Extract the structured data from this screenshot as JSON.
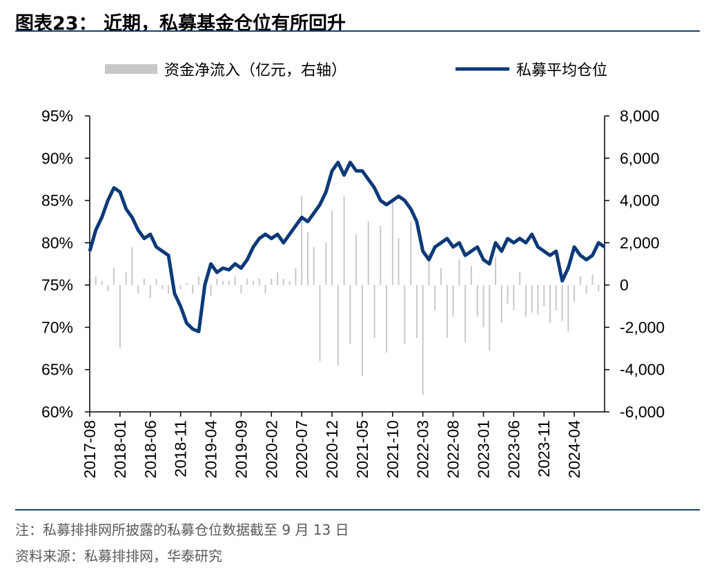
{
  "title": "图表23： 近期，私募基金仓位有所回升",
  "notes": {
    "note": "注：私募排排网所披露的私募仓位数据截至 9 月 13 日",
    "source": "资料来源：私募排排网，华泰研究"
  },
  "colors": {
    "line": "#0c3a78",
    "bars": "#c8c8c8",
    "rule": "#1f3f73"
  },
  "chart_data": {
    "type": "line",
    "legend": [
      "资金净流入（亿元，右轴）",
      "私募平均仓位"
    ],
    "legend_position": "top",
    "grid": false,
    "x_ticks": [
      "2017-08",
      "2018-01",
      "2018-06",
      "2018-11",
      "2019-04",
      "2019-09",
      "2020-02",
      "2020-07",
      "2020-12",
      "2021-05",
      "2021-10",
      "2022-03",
      "2022-08",
      "2023-01",
      "2023-06",
      "2023-11",
      "2024-04"
    ],
    "x_range": [
      "2017-08",
      "2024-09"
    ],
    "y_left": {
      "ticks": [
        "60%",
        "65%",
        "70%",
        "75%",
        "80%",
        "85%",
        "90%",
        "95%"
      ],
      "range": [
        60,
        95
      ],
      "unit": "%"
    },
    "y_right": {
      "ticks": [
        "8,000",
        "6,000",
        "4,000",
        "2,000",
        "0",
        "-2,000",
        "-4,000",
        "-6,000"
      ],
      "range": [
        -6000,
        8000
      ]
    },
    "series": [
      {
        "name": "私募平均仓位",
        "axis": "left",
        "points": [
          [
            "2017-08",
            79.0
          ],
          [
            "2017-09",
            81.5
          ],
          [
            "2017-10",
            83.0
          ],
          [
            "2017-11",
            85.0
          ],
          [
            "2017-12",
            86.5
          ],
          [
            "2018-01",
            86.0
          ],
          [
            "2018-02",
            84.0
          ],
          [
            "2018-03",
            83.0
          ],
          [
            "2018-04",
            81.5
          ],
          [
            "2018-05",
            80.5
          ],
          [
            "2018-06",
            81.0
          ],
          [
            "2018-07",
            79.5
          ],
          [
            "2018-08",
            79.0
          ],
          [
            "2018-09",
            78.5
          ],
          [
            "2018-10",
            74.0
          ],
          [
            "2018-11",
            72.5
          ],
          [
            "2018-12",
            70.5
          ],
          [
            "2019-01",
            69.8
          ],
          [
            "2019-02",
            69.5
          ],
          [
            "2019-03",
            75.0
          ],
          [
            "2019-04",
            77.5
          ],
          [
            "2019-05",
            76.5
          ],
          [
            "2019-06",
            77.0
          ],
          [
            "2019-07",
            76.8
          ],
          [
            "2019-08",
            77.5
          ],
          [
            "2019-09",
            77.0
          ],
          [
            "2019-10",
            78.0
          ],
          [
            "2019-11",
            79.5
          ],
          [
            "2019-12",
            80.5
          ],
          [
            "2020-01",
            81.0
          ],
          [
            "2020-02",
            80.5
          ],
          [
            "2020-03",
            81.0
          ],
          [
            "2020-04",
            80.0
          ],
          [
            "2020-05",
            81.0
          ],
          [
            "2020-06",
            82.0
          ],
          [
            "2020-07",
            83.0
          ],
          [
            "2020-08",
            82.5
          ],
          [
            "2020-09",
            83.5
          ],
          [
            "2020-10",
            84.5
          ],
          [
            "2020-11",
            86.0
          ],
          [
            "2020-12",
            88.5
          ],
          [
            "2021-01",
            89.5
          ],
          [
            "2021-02",
            88.0
          ],
          [
            "2021-03",
            89.5
          ],
          [
            "2021-04",
            88.5
          ],
          [
            "2021-05",
            88.5
          ],
          [
            "2021-06",
            87.5
          ],
          [
            "2021-07",
            86.5
          ],
          [
            "2021-08",
            85.0
          ],
          [
            "2021-09",
            84.5
          ],
          [
            "2021-10",
            85.0
          ],
          [
            "2021-11",
            85.5
          ],
          [
            "2021-12",
            85.0
          ],
          [
            "2022-01",
            84.0
          ],
          [
            "2022-02",
            82.5
          ],
          [
            "2022-03",
            79.0
          ],
          [
            "2022-04",
            78.0
          ],
          [
            "2022-05",
            79.5
          ],
          [
            "2022-06",
            80.0
          ],
          [
            "2022-07",
            80.5
          ],
          [
            "2022-08",
            79.5
          ],
          [
            "2022-09",
            80.0
          ],
          [
            "2022-10",
            78.5
          ],
          [
            "2022-11",
            79.0
          ],
          [
            "2022-12",
            79.5
          ],
          [
            "2023-01",
            78.0
          ],
          [
            "2023-02",
            77.5
          ],
          [
            "2023-03",
            80.0
          ],
          [
            "2023-04",
            79.0
          ],
          [
            "2023-05",
            80.5
          ],
          [
            "2023-06",
            80.0
          ],
          [
            "2023-07",
            80.5
          ],
          [
            "2023-08",
            80.0
          ],
          [
            "2023-09",
            81.0
          ],
          [
            "2023-10",
            79.5
          ],
          [
            "2023-11",
            79.0
          ],
          [
            "2023-12",
            78.5
          ],
          [
            "2024-01",
            79.0
          ],
          [
            "2024-02",
            75.5
          ],
          [
            "2024-03",
            77.0
          ],
          [
            "2024-04",
            79.5
          ],
          [
            "2024-05",
            78.5
          ],
          [
            "2024-06",
            78.0
          ],
          [
            "2024-07",
            78.5
          ],
          [
            "2024-08",
            80.0
          ],
          [
            "2024-09",
            79.5
          ]
        ]
      },
      {
        "name": "资金净流入（亿元，右轴）",
        "axis": "right",
        "type": "bar",
        "points": [
          [
            "2017-08",
            300
          ],
          [
            "2017-09",
            400
          ],
          [
            "2017-10",
            200
          ],
          [
            "2017-11",
            -300
          ],
          [
            "2017-12",
            800
          ],
          [
            "2018-01",
            -3000
          ],
          [
            "2018-02",
            600
          ],
          [
            "2018-03",
            1800
          ],
          [
            "2018-04",
            -400
          ],
          [
            "2018-05",
            300
          ],
          [
            "2018-06",
            -600
          ],
          [
            "2018-07",
            300
          ],
          [
            "2018-08",
            -200
          ],
          [
            "2018-09",
            -400
          ],
          [
            "2018-10",
            -300
          ],
          [
            "2018-11",
            -200
          ],
          [
            "2018-12",
            100
          ],
          [
            "2019-01",
            -400
          ],
          [
            "2019-02",
            400
          ],
          [
            "2019-03",
            -300
          ],
          [
            "2019-04",
            -500
          ],
          [
            "2019-05",
            300
          ],
          [
            "2019-06",
            200
          ],
          [
            "2019-07",
            200
          ],
          [
            "2019-08",
            400
          ],
          [
            "2019-09",
            -400
          ],
          [
            "2019-10",
            300
          ],
          [
            "2019-11",
            200
          ],
          [
            "2019-12",
            300
          ],
          [
            "2020-01",
            -400
          ],
          [
            "2020-02",
            300
          ],
          [
            "2020-03",
            600
          ],
          [
            "2020-04",
            300
          ],
          [
            "2020-05",
            200
          ],
          [
            "2020-06",
            800
          ],
          [
            "2020-07",
            4200
          ],
          [
            "2020-08",
            2500
          ],
          [
            "2020-09",
            1800
          ],
          [
            "2020-10",
            -3600
          ],
          [
            "2020-11",
            2000
          ],
          [
            "2020-12",
            3500
          ],
          [
            "2021-01",
            -3800
          ],
          [
            "2021-02",
            4200
          ],
          [
            "2021-03",
            -2800
          ],
          [
            "2021-04",
            2400
          ],
          [
            "2021-05",
            -4300
          ],
          [
            "2021-06",
            3000
          ],
          [
            "2021-07",
            -2500
          ],
          [
            "2021-08",
            2800
          ],
          [
            "2021-09",
            -3200
          ],
          [
            "2021-10",
            4000
          ],
          [
            "2021-11",
            2200
          ],
          [
            "2021-12",
            -2800
          ],
          [
            "2022-01",
            3000
          ],
          [
            "2022-02",
            -2500
          ],
          [
            "2022-03",
            -5200
          ],
          [
            "2022-04",
            1500
          ],
          [
            "2022-05",
            -1200
          ],
          [
            "2022-06",
            800
          ],
          [
            "2022-07",
            -2500
          ],
          [
            "2022-08",
            -1500
          ],
          [
            "2022-09",
            1200
          ],
          [
            "2022-10",
            -2700
          ],
          [
            "2022-11",
            900
          ],
          [
            "2022-12",
            -1500
          ],
          [
            "2023-01",
            -2000
          ],
          [
            "2023-02",
            -3100
          ],
          [
            "2023-03",
            1300
          ],
          [
            "2023-04",
            -1800
          ],
          [
            "2023-05",
            -900
          ],
          [
            "2023-06",
            -1200
          ],
          [
            "2023-07",
            600
          ],
          [
            "2023-08",
            -1500
          ],
          [
            "2023-09",
            -1300
          ],
          [
            "2023-10",
            -1400
          ],
          [
            "2023-11",
            -1000
          ],
          [
            "2023-12",
            -1800
          ],
          [
            "2024-01",
            -1200
          ],
          [
            "2024-02",
            -1700
          ],
          [
            "2024-03",
            -2200
          ],
          [
            "2024-04",
            -800
          ],
          [
            "2024-05",
            400
          ],
          [
            "2024-06",
            -400
          ],
          [
            "2024-07",
            500
          ],
          [
            "2024-08",
            -300
          ],
          [
            "2024-09",
            200
          ]
        ]
      }
    ]
  }
}
